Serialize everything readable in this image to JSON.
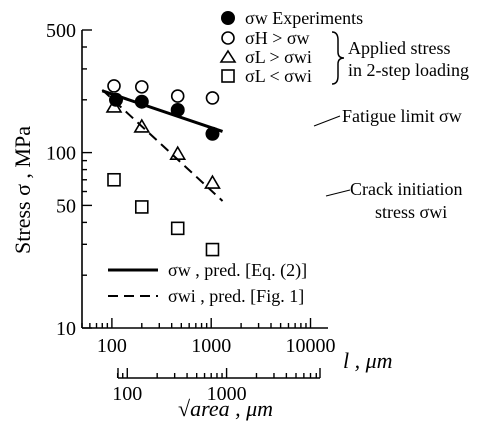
{
  "chart_data": {
    "type": "scatter",
    "ylabel": "Stress σ , MPa",
    "xlabel_primary": "l , μm",
    "xlabel_secondary": "√area , μm",
    "x_scale": "log",
    "y_scale": "log",
    "xlim": [
      50,
      15000
    ],
    "ylim": [
      10,
      500
    ],
    "x_ticks": [
      "100",
      "1000",
      "10000"
    ],
    "x2_ticks": [
      "100",
      "1000"
    ],
    "y_ticks": [
      "500",
      "100",
      "50",
      "10"
    ],
    "legend_top": {
      "experiments": "σw  Experiments",
      "sh_gt": "σH > σw",
      "sl_gt": "σL > σwi",
      "sl_lt": "σL < σwi",
      "brace_line1": "Applied stress",
      "brace_line2": "in 2-step loading"
    },
    "legend_bottom": {
      "solid": "σw , pred. [Eq. (2)]",
      "dashed": "σwi , pred. [Fig. 1]"
    },
    "annotations": {
      "fatigue": "Fatigue limit σw",
      "crack_line1": "Crack initiation",
      "crack_line2": "stress σwi"
    },
    "series": [
      {
        "name": "σw  Experiments",
        "marker": "filled-circle",
        "points": [
          [
            110,
            200
          ],
          [
            200,
            195
          ],
          [
            460,
            175
          ],
          [
            1030,
            128
          ]
        ]
      },
      {
        "name": "σH > σw",
        "marker": "open-circle",
        "points": [
          [
            105,
            240
          ],
          [
            200,
            237
          ],
          [
            460,
            210
          ],
          [
            1030,
            205
          ]
        ]
      },
      {
        "name": "σL > σwi",
        "marker": "open-triangle",
        "points": [
          [
            105,
            182
          ],
          [
            200,
            140
          ],
          [
            460,
            98
          ],
          [
            1030,
            67
          ]
        ]
      },
      {
        "name": "σL < σwi",
        "marker": "open-square",
        "points": [
          [
            105,
            70
          ],
          [
            200,
            49
          ],
          [
            460,
            37
          ],
          [
            1030,
            28
          ]
        ]
      }
    ],
    "lines": [
      {
        "name": "σw , pred. [Eq. (2)]",
        "style": "solid",
        "points": [
          [
            80,
            225
          ],
          [
            1300,
            132
          ]
        ]
      },
      {
        "name": "σwi , pred. [Fig. 1]",
        "style": "dashed",
        "points": [
          [
            80,
            228
          ],
          [
            1300,
            53
          ]
        ]
      }
    ]
  }
}
